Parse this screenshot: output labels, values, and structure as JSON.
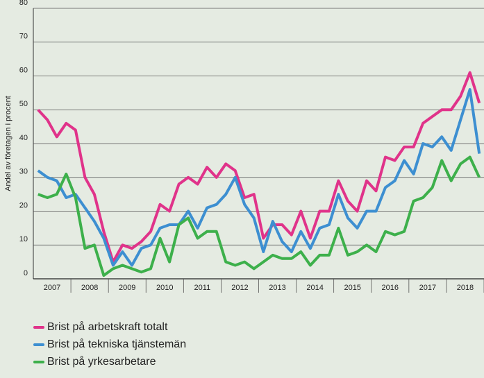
{
  "chart_data": {
    "type": "line",
    "y_label": "Andel av företagen i procent",
    "x": [
      2007.125,
      2007.375,
      2007.625,
      2007.875,
      2008.125,
      2008.375,
      2008.625,
      2008.875,
      2009.125,
      2009.375,
      2009.625,
      2009.875,
      2010.125,
      2010.375,
      2010.625,
      2010.875,
      2011.125,
      2011.375,
      2011.625,
      2011.875,
      2012.125,
      2012.375,
      2012.625,
      2012.875,
      2013.125,
      2013.375,
      2013.625,
      2013.875,
      2014.125,
      2014.375,
      2014.625,
      2014.875,
      2015.125,
      2015.375,
      2015.625,
      2015.875,
      2016.125,
      2016.375,
      2016.625,
      2016.875,
      2017.125,
      2017.375,
      2017.625,
      2017.875,
      2018.125,
      2018.375,
      2018.625,
      2018.875
    ],
    "series": [
      {
        "name": "Brist på arbetskraft totalt",
        "color": "#e0338a",
        "values": [
          50,
          47,
          42,
          46,
          44,
          30,
          25,
          14,
          5,
          10,
          9,
          11,
          14,
          22,
          20,
          28,
          30,
          28,
          33,
          30,
          34,
          32,
          24,
          25,
          12,
          16,
          16,
          13,
          20,
          12,
          20,
          20,
          29,
          23,
          20,
          29,
          26,
          36,
          35,
          39,
          39,
          46,
          48,
          50,
          50,
          54,
          61,
          52
        ]
      },
      {
        "name": "Brist på tekniska tjänstemän",
        "color": "#3d8fd1",
        "values": [
          32,
          30,
          29,
          24,
          25,
          21,
          17,
          12,
          4,
          8,
          4,
          9,
          10,
          15,
          16,
          16,
          20,
          15,
          21,
          22,
          25,
          30,
          22,
          18,
          8,
          17,
          11,
          8,
          14,
          9,
          15,
          16,
          25,
          18,
          15,
          20,
          20,
          27,
          29,
          35,
          31,
          40,
          39,
          42,
          38,
          47,
          56,
          37
        ]
      },
      {
        "name": "Brist på yrkesarbetare",
        "color": "#3db04b",
        "values": [
          25,
          24,
          25,
          31,
          24,
          9,
          10,
          1,
          3,
          4,
          3,
          2,
          3,
          12,
          5,
          16,
          18,
          12,
          14,
          14,
          5,
          4,
          5,
          3,
          5,
          7,
          6,
          6,
          8,
          4,
          7,
          7,
          15,
          7,
          8,
          10,
          8,
          14,
          13,
          14,
          23,
          24,
          27,
          35,
          29,
          34,
          36,
          30
        ]
      }
    ],
    "xlim": [
      2007,
      2019
    ],
    "xticks": [
      {
        "value": 2007.5,
        "label": "2007"
      },
      {
        "value": 2008.5,
        "label": "2008"
      },
      {
        "value": 2009.5,
        "label": "2009"
      },
      {
        "value": 2010.5,
        "label": "2010"
      },
      {
        "value": 2011.5,
        "label": "2011"
      },
      {
        "value": 2012.5,
        "label": "2012"
      },
      {
        "value": 2013.5,
        "label": "2013"
      },
      {
        "value": 2014.5,
        "label": "2014"
      },
      {
        "value": 2015.5,
        "label": "2015"
      },
      {
        "value": 2016.5,
        "label": "2016"
      },
      {
        "value": 2017.5,
        "label": "2017"
      },
      {
        "value": 2018.5,
        "label": "2018"
      }
    ],
    "ylim": [
      0,
      80
    ],
    "yticks": [
      0,
      10,
      20,
      30,
      40,
      50,
      60,
      70,
      80
    ],
    "grid": true
  }
}
